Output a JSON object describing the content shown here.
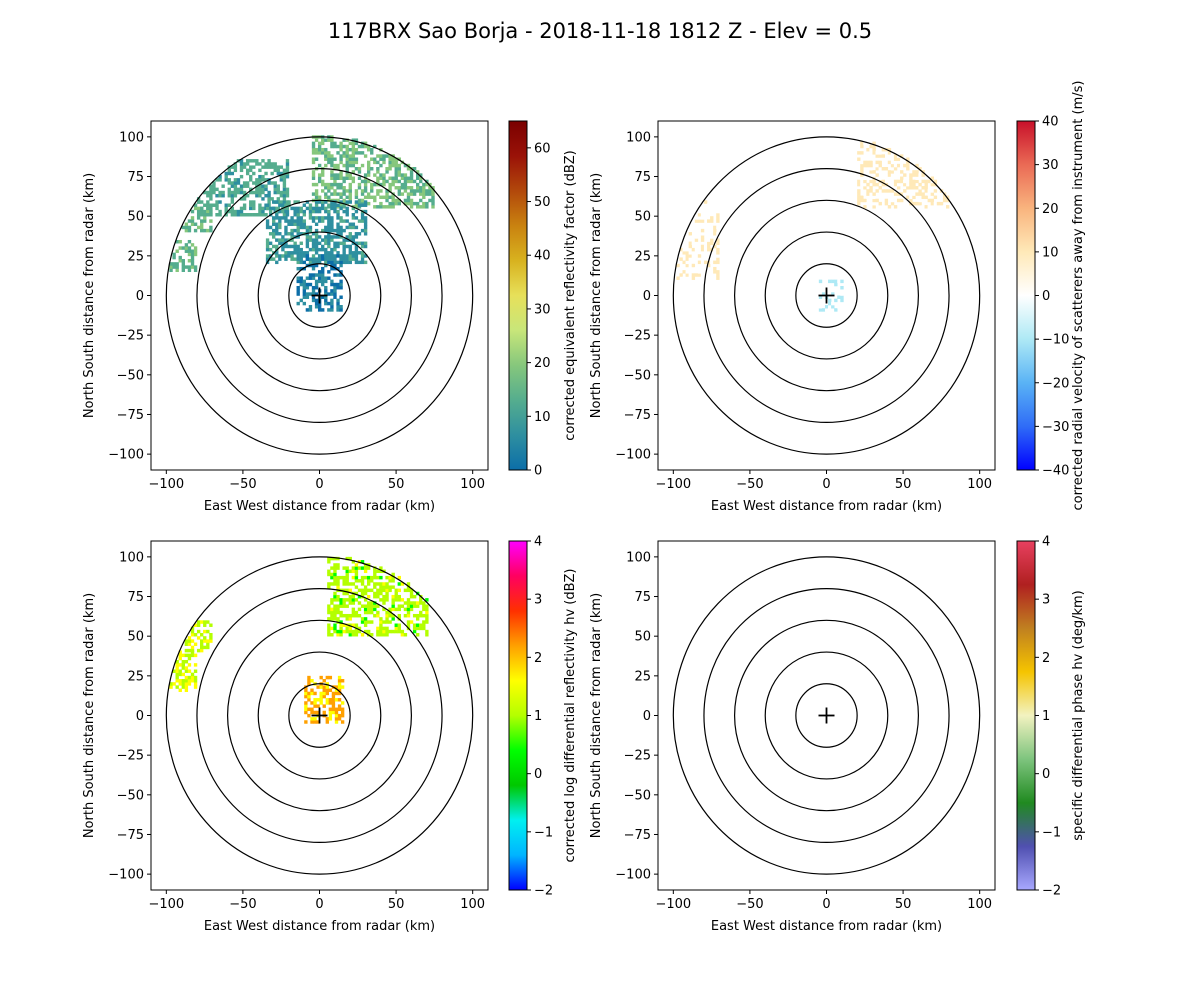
{
  "figure": {
    "title": "117BRX Sao Borja - 2018-11-18 1812 Z -  Elev = 0.5"
  },
  "chart_data": [
    {
      "type": "heatmap",
      "panel": "top-left",
      "field": "reflectivity",
      "xlabel": "East West distance from radar (km)",
      "ylabel": "North South distance from radar (km)",
      "xlim": [
        -110,
        110
      ],
      "ylim": [
        -110,
        110
      ],
      "xticks": [
        -100,
        -50,
        0,
        50,
        100
      ],
      "yticks": [
        -100,
        -75,
        -50,
        -25,
        0,
        25,
        50,
        75,
        100
      ],
      "range_rings_km": [
        20,
        40,
        60,
        80,
        100
      ],
      "radar_marker": "+",
      "colorbar": {
        "label": "corrected equivalent reflectivity factor (dBZ)",
        "min": 0,
        "max": 65,
        "ticks": [
          0,
          10,
          20,
          30,
          40,
          50,
          60
        ],
        "colors": [
          "#0c6ea8",
          "#2e8fa0",
          "#55ad8e",
          "#86c77c",
          "#c8e67a",
          "#e7e05a",
          "#d8b21f",
          "#c98210",
          "#b2480b",
          "#9a1208",
          "#7a0000"
        ]
      },
      "echo_regions": [
        {
          "kind": "blob",
          "x": [
            -100,
            -80
          ],
          "y": [
            15,
            35
          ],
          "value": 14
        },
        {
          "kind": "blob",
          "x": [
            -90,
            -70
          ],
          "y": [
            40,
            60
          ],
          "value": 15
        },
        {
          "kind": "blob",
          "x": [
            -80,
            -20
          ],
          "y": [
            50,
            85
          ],
          "value": 12
        },
        {
          "kind": "blob",
          "x": [
            -5,
            75
          ],
          "y": [
            55,
            100
          ],
          "value": 17
        },
        {
          "kind": "blob",
          "x": [
            -35,
            30
          ],
          "y": [
            20,
            60
          ],
          "value": 8
        },
        {
          "kind": "blob",
          "x": [
            -15,
            15
          ],
          "y": [
            -10,
            25
          ],
          "value": 3
        }
      ]
    },
    {
      "type": "heatmap",
      "panel": "top-right",
      "field": "velocity",
      "xlabel": "East West distance from radar (km)",
      "ylabel": "North South distance from radar (km)",
      "xlim": [
        -110,
        110
      ],
      "ylim": [
        -110,
        110
      ],
      "xticks": [
        -100,
        -50,
        0,
        50,
        100
      ],
      "yticks": [
        -100,
        -75,
        -50,
        -25,
        0,
        25,
        50,
        75,
        100
      ],
      "range_rings_km": [
        20,
        40,
        60,
        80,
        100
      ],
      "radar_marker": "+",
      "colorbar": {
        "label": "corrected radial velocity of scatterers away from instrument (m/s)",
        "min": -40,
        "max": 40,
        "ticks": [
          -40,
          -30,
          -20,
          -10,
          0,
          10,
          20,
          30,
          40
        ],
        "colors": [
          "#0000ff",
          "#2f6cf7",
          "#5ab3f5",
          "#aee9f5",
          "#ffffff",
          "#ffe9b8",
          "#f9b47e",
          "#ea6a55",
          "#c8102a"
        ]
      },
      "echo_regions": [
        {
          "kind": "blob",
          "x": [
            -100,
            -70
          ],
          "y": [
            10,
            60
          ],
          "value": 5
        },
        {
          "kind": "blob",
          "x": [
            20,
            80
          ],
          "y": [
            55,
            100
          ],
          "value": 7
        },
        {
          "kind": "blob",
          "x": [
            -5,
            10
          ],
          "y": [
            -10,
            10
          ],
          "value": -6
        }
      ]
    },
    {
      "type": "heatmap",
      "panel": "bottom-left",
      "field": "differential_reflectivity",
      "xlabel": "East West distance from radar (km)",
      "ylabel": "North South distance from radar (km)",
      "xlim": [
        -110,
        110
      ],
      "ylim": [
        -110,
        110
      ],
      "xticks": [
        -100,
        -50,
        0,
        50,
        100
      ],
      "yticks": [
        -100,
        -75,
        -50,
        -25,
        0,
        25,
        50,
        75,
        100
      ],
      "range_rings_km": [
        20,
        40,
        60,
        80,
        100
      ],
      "radar_marker": "+",
      "colorbar": {
        "label": "corrected log differential reflectivity hv (dBZ)",
        "min": -2,
        "max": 4,
        "ticks": [
          -2,
          -1,
          0,
          1,
          2,
          3,
          4
        ],
        "colors": [
          "#0000ff",
          "#00b4ff",
          "#00f0f0",
          "#00c800",
          "#00ff00",
          "#b4ff00",
          "#ffff00",
          "#ffa000",
          "#ff3000",
          "#ff0060",
          "#ff00ff"
        ]
      },
      "echo_regions": [
        {
          "kind": "blob",
          "x": [
            -100,
            -80
          ],
          "y": [
            15,
            40
          ],
          "value": 1.3
        },
        {
          "kind": "blob",
          "x": [
            -90,
            -70
          ],
          "y": [
            40,
            60
          ],
          "value": 1.2
        },
        {
          "kind": "blob",
          "x": [
            5,
            70
          ],
          "y": [
            50,
            100
          ],
          "value": 1.0
        },
        {
          "kind": "blob",
          "x": [
            -10,
            15
          ],
          "y": [
            -5,
            25
          ],
          "value": 2.0
        }
      ]
    },
    {
      "type": "heatmap",
      "panel": "bottom-right",
      "field": "specific_differential_phase",
      "xlabel": "East West distance from radar (km)",
      "ylabel": "North South distance from radar (km)",
      "xlim": [
        -110,
        110
      ],
      "ylim": [
        -110,
        110
      ],
      "xticks": [
        -100,
        -50,
        0,
        50,
        100
      ],
      "yticks": [
        -100,
        -75,
        -50,
        -25,
        0,
        25,
        50,
        75,
        100
      ],
      "range_rings_km": [
        20,
        40,
        60,
        80,
        100
      ],
      "radar_marker": "+",
      "colorbar": {
        "label": "specific differential phase hv (deg/km)",
        "min": -2,
        "max": 4,
        "ticks": [
          -2,
          -1,
          0,
          1,
          2,
          3,
          4
        ],
        "colors": [
          "#a8a8ff",
          "#5050b0",
          "#208a20",
          "#7ec47e",
          "#f2f2c0",
          "#f5c400",
          "#c08020",
          "#b02020",
          "#e84060"
        ]
      },
      "echo_regions": []
    }
  ]
}
